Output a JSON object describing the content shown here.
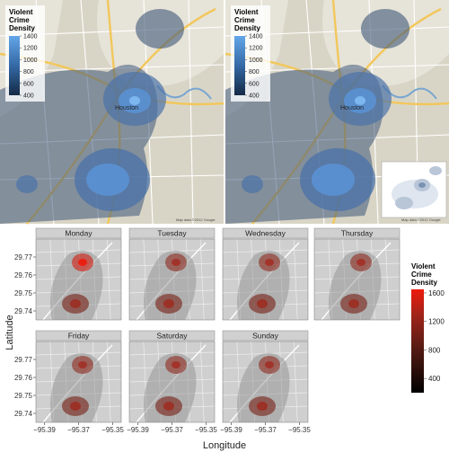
{
  "chart_data": [
    {
      "type": "heatmap",
      "panel": "top-left",
      "legend": {
        "title": [
          "Violent",
          "Crime",
          "Density"
        ],
        "ticks": [
          400,
          600,
          800,
          1000,
          1200,
          1400
        ],
        "placement": "top-left"
      },
      "attribution": "Map data ©2012 Google"
    },
    {
      "type": "heatmap",
      "panel": "top-right",
      "legend": {
        "title": [
          "Violent",
          "Crime",
          "Density"
        ],
        "ticks": [
          400,
          600,
          800,
          1000,
          1200,
          1400
        ],
        "placement": "top-left"
      },
      "inset": "contour-only",
      "attribution": "Map data ©2012 Google"
    },
    {
      "type": "heatmap",
      "facets": [
        "Monday",
        "Tuesday",
        "Wednesday",
        "Thursday",
        "Friday",
        "Saturday",
        "Sunday"
      ],
      "xlabel": "Longitude",
      "ylabel": "Latitude",
      "x_ticks": [
        "−95.39",
        "−95.37",
        "−95.35"
      ],
      "y_ticks": [
        "29.77",
        "29.76",
        "29.75",
        "29.74"
      ],
      "xlim": [
        -95.395,
        -95.345
      ],
      "ylim": [
        29.735,
        29.78
      ],
      "legend": {
        "title": [
          "Violent",
          "Crime",
          "Density"
        ],
        "ticks": [
          400,
          800,
          1200,
          1600
        ],
        "placement": "right"
      },
      "grid": true,
      "colors": {
        "low": "#000000",
        "mid": "#7a2a1e",
        "high": "#ee1a0c",
        "map": "#cfcfcf",
        "strip": "#d0d0d0"
      }
    }
  ]
}
